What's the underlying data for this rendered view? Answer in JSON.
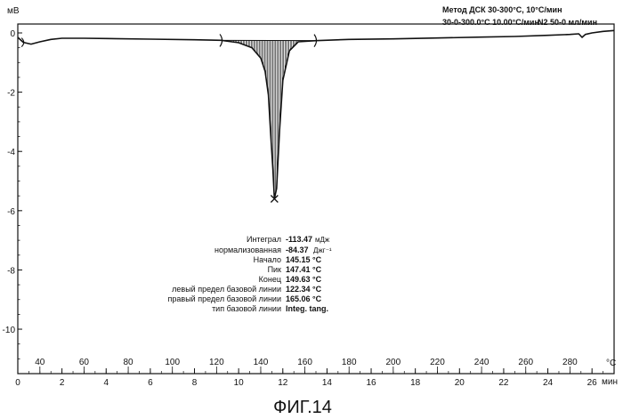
{
  "header": {
    "method": "Метод ДСК 30-300°C, 10°C/мин",
    "segment": "30-0-300.0°C 10.00°C/мин",
    "purge": "N2 50-0 мл/мин"
  },
  "results": [
    {
      "label": "Интеграл",
      "value": "-113.47",
      "unit": "мДж"
    },
    {
      "label": "нормализованная",
      "value": "-84.37",
      "unit": "Джг⁻¹"
    },
    {
      "label": "Начало",
      "value": "145.15 °C",
      "unit": ""
    },
    {
      "label": "Пик",
      "value": "147.41 °C",
      "unit": ""
    },
    {
      "label": "Конец",
      "value": "149.63 °C",
      "unit": ""
    },
    {
      "label": "левый предел базовой линии",
      "value": "122.34 °C",
      "unit": ""
    },
    {
      "label": "правый предел базовой линии",
      "value": "165.06 °C",
      "unit": ""
    },
    {
      "label": "тип базовой линии",
      "value": "Integ. tang.",
      "unit": ""
    }
  ],
  "caption": "ФИГ.14",
  "chart_data": {
    "type": "line",
    "ylabel": "мВ",
    "x_top_label": "°C",
    "x_bottom_label": "мин",
    "xlim_min": [
      0,
      27
    ],
    "xlim_temp": [
      30,
      300
    ],
    "ylim": [
      -11.5,
      0.3
    ],
    "y_ticks": [
      "0",
      "-2",
      "-4",
      "-6",
      "-8",
      "-10"
    ],
    "y_tick_values": [
      0,
      -2,
      -4,
      -6,
      -8,
      -10
    ],
    "x_ticks_min": [
      "0",
      "2",
      "4",
      "6",
      "8",
      "10",
      "12",
      "14",
      "16",
      "18",
      "20",
      "22",
      "24",
      "26"
    ],
    "x_tick_min_values": [
      0,
      2,
      4,
      6,
      8,
      10,
      12,
      14,
      16,
      18,
      20,
      22,
      24,
      26
    ],
    "x_ticks_temp": [
      "40",
      "60",
      "80",
      "100",
      "120",
      "140",
      "160",
      "180",
      "200",
      "220",
      "240",
      "260",
      "280"
    ],
    "x_tick_temp_values": [
      40,
      60,
      80,
      100,
      120,
      140,
      160,
      180,
      200,
      220,
      240,
      260,
      280
    ],
    "series": [
      {
        "x": [
          0.0,
          0.25,
          0.6,
          1.0,
          1.5,
          2.0,
          3.0,
          4.0,
          6.0,
          8.0,
          9.2,
          10.0,
          10.6,
          11.0,
          11.2,
          11.35,
          11.45,
          11.55,
          11.62,
          11.72,
          11.85,
          12.0,
          12.3,
          12.7,
          13.5,
          15.0,
          17.0,
          19.0,
          21.0,
          22.5,
          24.0,
          25.0,
          25.4,
          25.55,
          25.7,
          26.0,
          26.5,
          27.0
        ],
        "y": [
          -0.15,
          -0.32,
          -0.38,
          -0.3,
          -0.22,
          -0.18,
          -0.18,
          -0.19,
          -0.21,
          -0.23,
          -0.25,
          -0.33,
          -0.5,
          -0.85,
          -1.3,
          -2.1,
          -3.4,
          -4.6,
          -5.6,
          -5.25,
          -3.3,
          -1.6,
          -0.6,
          -0.3,
          -0.26,
          -0.22,
          -0.2,
          -0.17,
          -0.14,
          -0.12,
          -0.08,
          -0.05,
          -0.03,
          -0.15,
          -0.05,
          0.0,
          0.05,
          0.08
        ]
      }
    ],
    "baseline_limits_min": [
      9.23,
      13.5
    ],
    "peak": {
      "x": 11.62,
      "y": -5.6
    }
  }
}
